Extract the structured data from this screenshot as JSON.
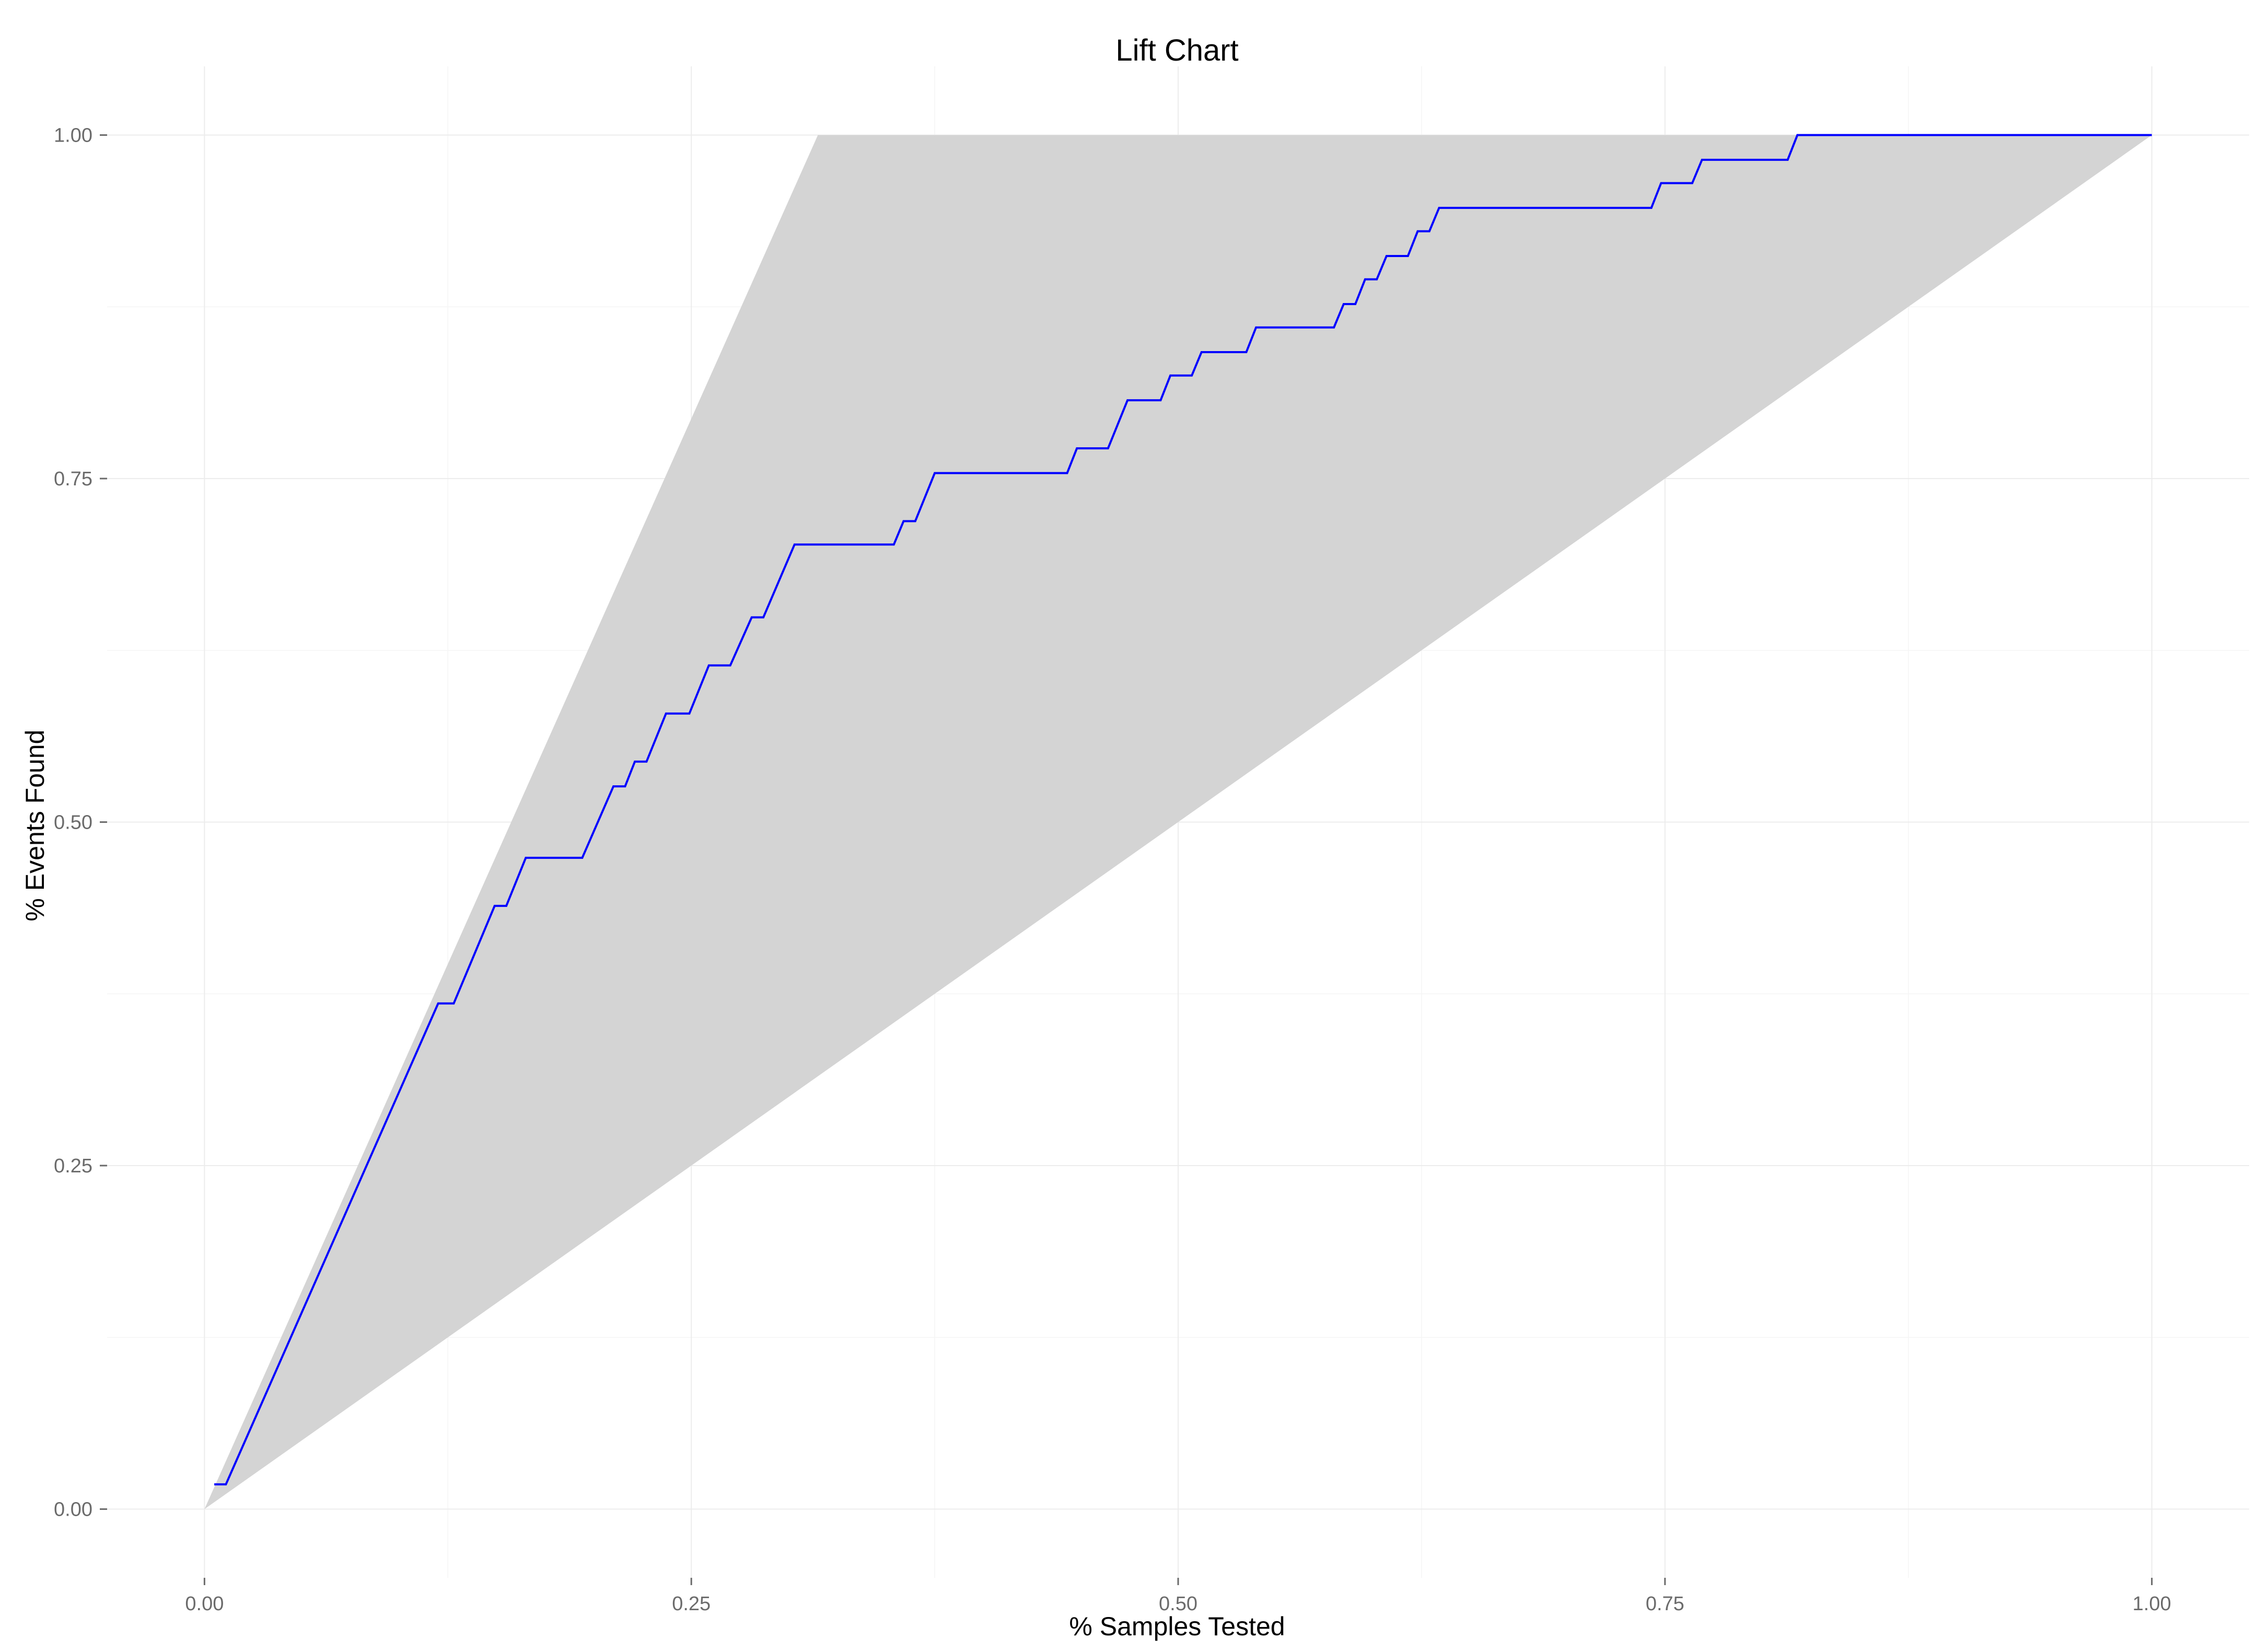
{
  "chart_data": {
    "type": "line",
    "title": "Lift Chart",
    "xlabel": "% Samples Tested",
    "ylabel": "% Events Found",
    "xlim": [
      -0.05,
      1.05
    ],
    "ylim": [
      -0.05,
      1.05
    ],
    "x_ticks": [
      {
        "value": 0.0,
        "label": "0.00"
      },
      {
        "value": 0.25,
        "label": "0.25"
      },
      {
        "value": 0.5,
        "label": "0.50"
      },
      {
        "value": 0.75,
        "label": "0.75"
      },
      {
        "value": 1.0,
        "label": "1.00"
      }
    ],
    "y_ticks": [
      {
        "value": 0.0,
        "label": "0.00"
      },
      {
        "value": 0.25,
        "label": "0.25"
      },
      {
        "value": 0.5,
        "label": "0.50"
      },
      {
        "value": 0.75,
        "label": "0.75"
      },
      {
        "value": 1.0,
        "label": "1.00"
      }
    ],
    "grid": true,
    "legend": "none",
    "band": {
      "color": "#d4d4d4",
      "points": [
        [
          0.0,
          0.0
        ],
        [
          0.315,
          1.0
        ],
        [
          1.0,
          1.0
        ]
      ]
    },
    "series": [
      {
        "color": "#0000ff",
        "x": [
          0.005,
          0.011,
          0.12,
          0.128,
          0.149,
          0.155,
          0.165,
          0.194,
          0.21,
          0.216,
          0.221,
          0.227,
          0.237,
          0.249,
          0.259,
          0.27,
          0.281,
          0.287,
          0.303,
          0.354,
          0.359,
          0.365,
          0.375,
          0.443,
          0.448,
          0.464,
          0.474,
          0.491,
          0.496,
          0.507,
          0.512,
          0.535,
          0.54,
          0.58,
          0.585,
          0.591,
          0.596,
          0.602,
          0.607,
          0.618,
          0.623,
          0.629,
          0.634,
          0.743,
          0.748,
          0.764,
          0.769,
          0.813,
          0.818,
          1.0
        ],
        "y": [
          0.018,
          0.018,
          0.368,
          0.368,
          0.439,
          0.439,
          0.474,
          0.474,
          0.526,
          0.526,
          0.544,
          0.544,
          0.579,
          0.579,
          0.614,
          0.614,
          0.649,
          0.649,
          0.702,
          0.702,
          0.719,
          0.719,
          0.754,
          0.754,
          0.772,
          0.772,
          0.807,
          0.807,
          0.825,
          0.825,
          0.842,
          0.842,
          0.86,
          0.86,
          0.877,
          0.877,
          0.895,
          0.895,
          0.912,
          0.912,
          0.93,
          0.93,
          0.947,
          0.947,
          0.965,
          0.965,
          0.982,
          0.982,
          1.0,
          1.0
        ]
      }
    ]
  }
}
